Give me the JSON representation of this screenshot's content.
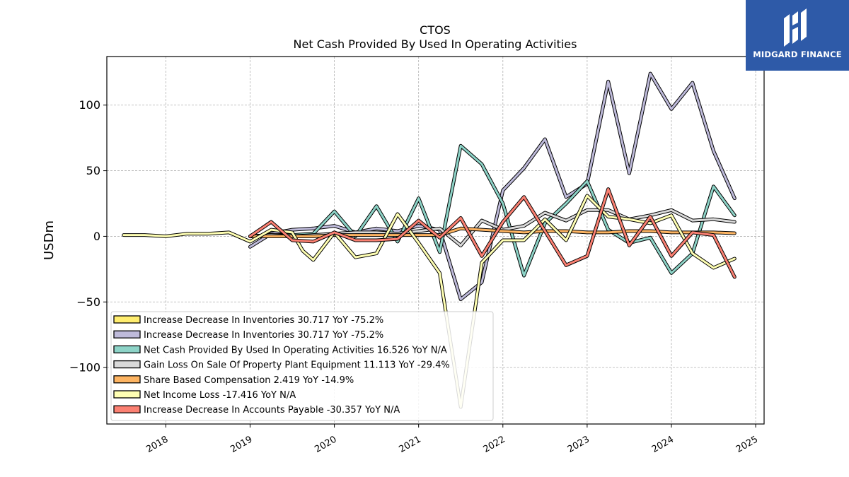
{
  "chart_data": {
    "type": "line",
    "title": "CTOS",
    "subtitle": "Net Cash Provided By Used In Operating Activities",
    "ylabel": "USDm",
    "xlabel": "",
    "xlim": [
      2017.3,
      2025.1
    ],
    "ylim": [
      -143,
      137
    ],
    "yticks": [
      -100,
      -50,
      0,
      50,
      100
    ],
    "yticklabels": [
      "−100",
      "−50",
      "0",
      "50",
      "100"
    ],
    "xticks": [
      2018,
      2019,
      2020,
      2021,
      2022,
      2023,
      2024,
      2025
    ],
    "xticklabels": [
      "2018",
      "2019",
      "2020",
      "2021",
      "2022",
      "2023",
      "2024",
      "2025"
    ],
    "grid": true,
    "legend_position": "lower-left",
    "series": [
      {
        "name": "Increase Decrease In Inventories  30.717 YoY -75.2%",
        "color": "#ffed6f",
        "legend_only": true,
        "x": [],
        "y": []
      },
      {
        "name": "Increase Decrease In Inventories  30.717 YoY -75.2%",
        "color": "#bebada",
        "x": [
          2019.0,
          2019.25,
          2019.5,
          2019.75,
          2020.0,
          2020.25,
          2020.5,
          2020.75,
          2021.0,
          2021.25,
          2021.5,
          2021.75,
          2022.0,
          2022.25,
          2022.5,
          2022.75,
          2023.0,
          2023.25,
          2023.5,
          2023.75,
          2024.0,
          2024.25,
          2024.5,
          2024.75
        ],
        "y": [
          -8,
          2,
          5,
          6,
          8,
          3,
          6,
          4,
          8,
          5,
          -48,
          -35,
          35,
          52,
          74,
          30,
          40,
          118,
          48,
          124,
          97,
          117,
          65,
          29
        ]
      },
      {
        "name": "Net Cash Provided By Used In Operating Activities  16.526 YoY N/A",
        "color": "#8dd3c7",
        "x": [
          2019.0,
          2019.25,
          2019.5,
          2019.75,
          2020.0,
          2020.25,
          2020.5,
          2020.75,
          2021.0,
          2021.25,
          2021.5,
          2021.75,
          2022.0,
          2022.25,
          2022.5,
          2022.75,
          2023.0,
          2023.25,
          2023.5,
          2023.75,
          2024.0,
          2024.25,
          2024.5,
          2024.75
        ],
        "y": [
          0,
          1,
          1,
          2,
          19,
          0,
          23,
          -4,
          29,
          -12,
          69,
          55,
          25,
          -30,
          10,
          25,
          42,
          5,
          -5,
          -1,
          -28,
          -13,
          38,
          16
        ]
      },
      {
        "name": "Gain Loss On Sale Of Property Plant Equipment  11.113 YoY -29.4%",
        "color": "#d9d9d9",
        "x": [
          2019.0,
          2019.25,
          2019.5,
          2019.75,
          2020.0,
          2020.25,
          2020.5,
          2020.75,
          2021.0,
          2021.25,
          2021.5,
          2021.75,
          2022.0,
          2022.25,
          2022.5,
          2022.75,
          2023.0,
          2023.25,
          2023.5,
          2023.75,
          2024.0,
          2024.25,
          2024.5,
          2024.75
        ],
        "y": [
          0,
          1,
          0,
          1,
          2,
          3,
          3,
          2,
          4,
          6,
          -7,
          12,
          5,
          8,
          18,
          12,
          20,
          20,
          13,
          16,
          20,
          12,
          13,
          11
        ]
      },
      {
        "name": "Share Based Compensation  2.419 YoY -14.9%",
        "color": "#fdb462",
        "x": [
          2019.0,
          2019.25,
          2019.5,
          2019.75,
          2020.0,
          2020.25,
          2020.5,
          2020.75,
          2021.0,
          2021.25,
          2021.5,
          2021.75,
          2022.0,
          2022.25,
          2022.5,
          2022.75,
          2023.0,
          2023.25,
          2023.5,
          2023.75,
          2024.0,
          2024.25,
          2024.5,
          2024.75
        ],
        "y": [
          0,
          0,
          0,
          0,
          1,
          1,
          1,
          1,
          1,
          1,
          6,
          5,
          4,
          3,
          4,
          4,
          3,
          3,
          4,
          4,
          3,
          3,
          3,
          2.4
        ]
      },
      {
        "name": "Net Income Loss  -17.416 YoY N/A",
        "color": "#ffffb3",
        "x": [
          2017.5,
          2017.75,
          2018.0,
          2018.25,
          2018.5,
          2018.75,
          2019.0,
          2019.25,
          2019.5,
          2019.625,
          2019.75,
          2020.0,
          2020.25,
          2020.5,
          2020.75,
          2021.0,
          2021.25,
          2021.5,
          2021.75,
          2022.0,
          2022.25,
          2022.5,
          2022.75,
          2023.0,
          2023.25,
          2023.5,
          2023.75,
          2024.0,
          2024.25,
          2024.5,
          2024.75
        ],
        "y": [
          1,
          1,
          0,
          2,
          2,
          3,
          -4,
          5,
          3,
          -11,
          -18,
          3,
          -16,
          -13,
          17,
          -5,
          -28,
          -130,
          -20,
          -3,
          -3,
          13,
          -3,
          31,
          15,
          13,
          10,
          16,
          -13,
          -24,
          -17
        ]
      },
      {
        "name": "Increase Decrease In Accounts Payable  -30.357 YoY N/A",
        "color": "#fb8072",
        "x": [
          2019.0,
          2019.25,
          2019.5,
          2019.75,
          2020.0,
          2020.25,
          2020.5,
          2020.75,
          2021.0,
          2021.25,
          2021.5,
          2021.75,
          2022.0,
          2022.25,
          2022.5,
          2022.75,
          2023.0,
          2023.25,
          2023.5,
          2023.75,
          2024.0,
          2024.25,
          2024.5,
          2024.75
        ],
        "y": [
          0,
          11,
          -3,
          -4,
          3,
          -3,
          -3,
          -2,
          12,
          -1,
          14,
          -15,
          11,
          30,
          4,
          -22,
          -15,
          36,
          -7,
          15,
          -15,
          3,
          1,
          -31
        ]
      }
    ]
  },
  "logo": {
    "text": "MIDGARD FINANCE",
    "icon": "midgard-logo-icon"
  }
}
